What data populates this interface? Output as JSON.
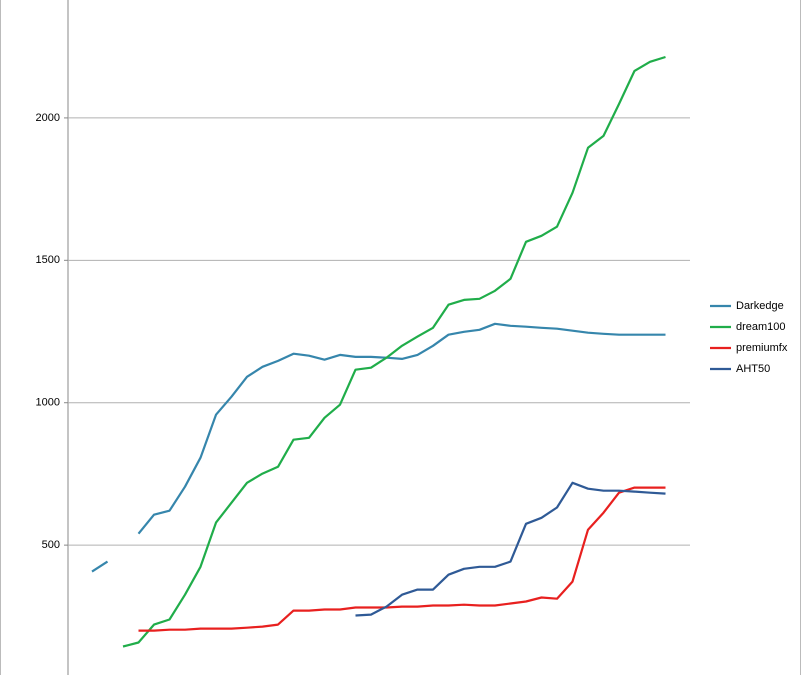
{
  "chart_data": {
    "type": "line",
    "categories": [
      null,
      null,
      null,
      null,
      null,
      null,
      null,
      null,
      null,
      null,
      null,
      null,
      null,
      null,
      null,
      null,
      null,
      null,
      null,
      null,
      null,
      null,
      null,
      null,
      null,
      null,
      null,
      null,
      null,
      null,
      null,
      null,
      null,
      null,
      null,
      null,
      null,
      null
    ],
    "series": [
      {
        "name": "Darkedge",
        "color": "#3686ac",
        "values": [
          407,
          442,
          null,
          540,
          607,
          621,
          705,
          807,
          958,
          1021,
          1091,
          1126,
          1147,
          1172,
          1165,
          1151,
          1168,
          1161,
          1161,
          1158,
          1154,
          1168,
          1200,
          1239,
          1249,
          1256,
          1277,
          1270,
          1267,
          1263,
          1260,
          1253,
          1246,
          1242,
          1239,
          1239,
          1239,
          1239
        ]
      },
      {
        "name": "dream100",
        "color": "#20ad4a",
        "values": [
          null,
          null,
          144,
          158,
          221,
          239,
          326,
          424,
          579,
          649,
          719,
          751,
          775,
          870,
          877,
          947,
          993,
          1116,
          1123,
          1158,
          1200,
          1232,
          1263,
          1344,
          1361,
          1365,
          1393,
          1435,
          1565,
          1586,
          1618,
          1737,
          1895,
          1937,
          2049,
          2165,
          2197,
          2214
        ]
      },
      {
        "name": "premiumfx",
        "color": "#e8201f",
        "values": [
          null,
          null,
          null,
          200,
          200,
          203,
          203,
          207,
          207,
          207,
          210,
          214,
          221,
          270,
          270,
          274,
          274,
          281,
          281,
          281,
          284,
          284,
          288,
          288,
          291,
          288,
          288,
          295,
          302,
          316,
          312,
          372,
          554,
          614,
          684,
          702,
          702,
          702
        ]
      },
      {
        "name": "AHT50",
        "color": "#2f5a96",
        "values": [
          null,
          null,
          null,
          null,
          null,
          null,
          null,
          null,
          null,
          null,
          null,
          null,
          null,
          null,
          null,
          null,
          null,
          253,
          256,
          284,
          326,
          344,
          344,
          396,
          417,
          424,
          424,
          442,
          575,
          596,
          632,
          719,
          698,
          691,
          691,
          688,
          684,
          681
        ]
      }
    ],
    "ylim": [
      44,
      2414
    ],
    "yticks": [
      500,
      1000,
      1500,
      2000
    ],
    "grid": true,
    "legend": "right"
  }
}
